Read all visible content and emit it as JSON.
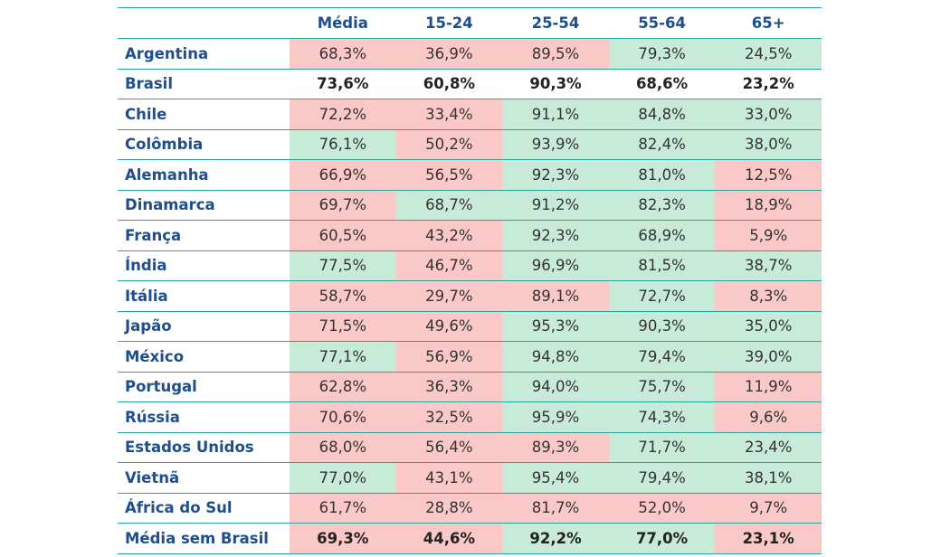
{
  "table": {
    "columns": [
      "",
      "Média",
      "15-24",
      "25-54",
      "55-64",
      "65+"
    ],
    "colors": {
      "below": "#fac8c6",
      "above": "#c8ead8",
      "reference": "#ffffff"
    },
    "rows": [
      {
        "country": "Argentina",
        "bold": false,
        "values": [
          "68,3%",
          "36,9%",
          "89,5%",
          "79,3%",
          "24,5%"
        ],
        "status": [
          "below",
          "below",
          "below",
          "above",
          "above"
        ]
      },
      {
        "country": "Brasil",
        "bold": true,
        "values": [
          "73,6%",
          "60,8%",
          "90,3%",
          "68,6%",
          "23,2%"
        ],
        "status": [
          "reference",
          "reference",
          "reference",
          "reference",
          "reference"
        ]
      },
      {
        "country": "Chile",
        "bold": false,
        "values": [
          "72,2%",
          "33,4%",
          "91,1%",
          "84,8%",
          "33,0%"
        ],
        "status": [
          "below",
          "below",
          "above",
          "above",
          "above"
        ]
      },
      {
        "country": "Colômbia",
        "bold": false,
        "values": [
          "76,1%",
          "50,2%",
          "93,9%",
          "82,4%",
          "38,0%"
        ],
        "status": [
          "above",
          "below",
          "above",
          "above",
          "above"
        ]
      },
      {
        "country": "Alemanha",
        "bold": false,
        "values": [
          "66,9%",
          "56,5%",
          "92,3%",
          "81,0%",
          "12,5%"
        ],
        "status": [
          "below",
          "below",
          "above",
          "above",
          "below"
        ]
      },
      {
        "country": "Dinamarca",
        "bold": false,
        "values": [
          "69,7%",
          "68,7%",
          "91,2%",
          "82,3%",
          "18,9%"
        ],
        "status": [
          "below",
          "above",
          "above",
          "above",
          "below"
        ]
      },
      {
        "country": "França",
        "bold": false,
        "values": [
          "60,5%",
          "43,2%",
          "92,3%",
          "68,9%",
          "5,9%"
        ],
        "status": [
          "below",
          "below",
          "above",
          "above",
          "below"
        ]
      },
      {
        "country": "Índia",
        "bold": false,
        "values": [
          "77,5%",
          "46,7%",
          "96,9%",
          "81,5%",
          "38,7%"
        ],
        "status": [
          "above",
          "below",
          "above",
          "above",
          "above"
        ]
      },
      {
        "country": "Itália",
        "bold": false,
        "values": [
          "58,7%",
          "29,7%",
          "89,1%",
          "72,7%",
          "8,3%"
        ],
        "status": [
          "below",
          "below",
          "below",
          "above",
          "below"
        ]
      },
      {
        "country": "Japão",
        "bold": false,
        "values": [
          "71,5%",
          "49,6%",
          "95,3%",
          "90,3%",
          "35,0%"
        ],
        "status": [
          "below",
          "below",
          "above",
          "above",
          "above"
        ]
      },
      {
        "country": "México",
        "bold": false,
        "values": [
          "77,1%",
          "56,9%",
          "94,8%",
          "79,4%",
          "39,0%"
        ],
        "status": [
          "above",
          "below",
          "above",
          "above",
          "above"
        ]
      },
      {
        "country": "Portugal",
        "bold": false,
        "values": [
          "62,8%",
          "36,3%",
          "94,0%",
          "75,7%",
          "11,9%"
        ],
        "status": [
          "below",
          "below",
          "above",
          "above",
          "below"
        ]
      },
      {
        "country": "Rússia",
        "bold": false,
        "values": [
          "70,6%",
          "32,5%",
          "95,9%",
          "74,3%",
          "9,6%"
        ],
        "status": [
          "below",
          "below",
          "above",
          "above",
          "below"
        ]
      },
      {
        "country": "Estados Unidos",
        "bold": false,
        "values": [
          "68,0%",
          "56,4%",
          "89,3%",
          "71,7%",
          "23,4%"
        ],
        "status": [
          "below",
          "below",
          "below",
          "above",
          "above"
        ]
      },
      {
        "country": "Vietnã",
        "bold": false,
        "values": [
          "77,0%",
          "43,1%",
          "95,4%",
          "79,4%",
          "38,1%"
        ],
        "status": [
          "above",
          "below",
          "above",
          "above",
          "above"
        ]
      },
      {
        "country": "África do Sul",
        "bold": false,
        "values": [
          "61,7%",
          "28,8%",
          "81,7%",
          "52,0%",
          "9,7%"
        ],
        "status": [
          "below",
          "below",
          "below",
          "below",
          "below"
        ]
      },
      {
        "country": "Média sem Brasil",
        "bold": true,
        "values": [
          "69,3%",
          "44,6%",
          "92,2%",
          "77,0%",
          "23,1%"
        ],
        "status": [
          "below",
          "below",
          "above",
          "above",
          "below"
        ]
      }
    ]
  }
}
